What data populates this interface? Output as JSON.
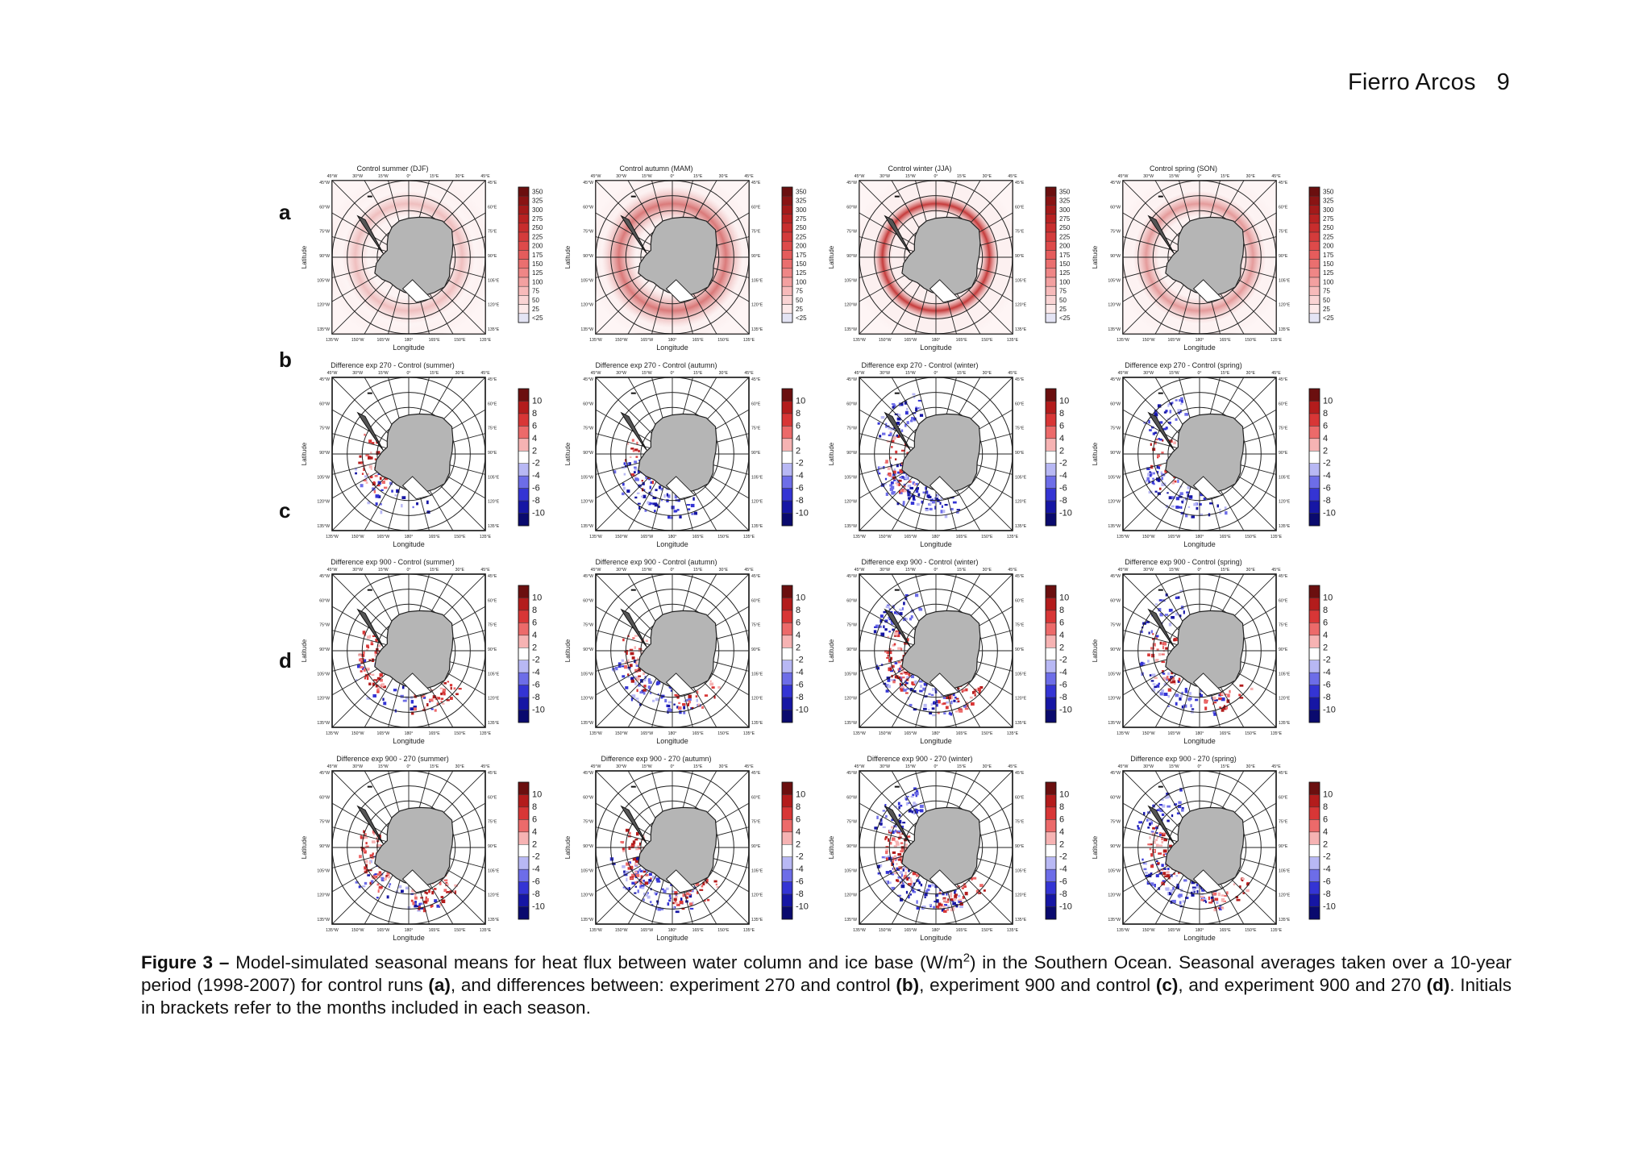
{
  "header": {
    "author": "Fierro Arcos",
    "page_number": "9"
  },
  "figure": {
    "row_labels": [
      "a",
      "b",
      "c",
      "d"
    ],
    "xlabel": "Longitude",
    "ylabel": "Latitude",
    "lon_ticks": [
      "45°W",
      "30°W",
      "15°W",
      "0°",
      "15°E",
      "30°E",
      "45°E"
    ],
    "bottom_ticks": [
      "135°W",
      "150°W",
      "165°W",
      "180°",
      "165°E",
      "150°E",
      "135°E"
    ],
    "left_ticks": [
      "45°W",
      "60°W",
      "75°W",
      "90°W",
      "105°W",
      "120°W",
      "135°W"
    ],
    "right_ticks": [
      "45°E",
      "60°E",
      "75°E",
      "90°E",
      "105°E",
      "120°E",
      "135°E"
    ],
    "colorbars": {
      "control": [
        "350",
        "325",
        "300",
        "275",
        "250",
        "225",
        "200",
        "175",
        "150",
        "125",
        "100",
        "75",
        "50",
        "25",
        "<25"
      ],
      "difference": [
        "10",
        "8",
        "6",
        "4",
        "2",
        "-2",
        "-4",
        "-6",
        "-8",
        "-10"
      ]
    },
    "colors": {
      "control": [
        "#6b0f0f",
        "#8a1414",
        "#a31a1a",
        "#b82222",
        "#c82d2d",
        "#d43b3b",
        "#de4a4a",
        "#e55c5c",
        "#ea6f6f",
        "#ef8686",
        "#f3a0a0",
        "#f7baba",
        "#fad4d4",
        "#fdeaea",
        "#e4e4f4"
      ],
      "difference": [
        "#6b0f0f",
        "#b31c1c",
        "#d83636",
        "#ec6a6a",
        "#f6b3b3",
        "#ffffff",
        "#b8b8f4",
        "#6d6de8",
        "#3434d4",
        "#1616a4",
        "#0a0a6e"
      ]
    },
    "panels": [
      {
        "row": 0,
        "col": 0,
        "title": "Control summer (DJF)",
        "scale": "control",
        "ring": {
          "intensity": 0.12,
          "width": 0.3
        }
      },
      {
        "row": 0,
        "col": 1,
        "title": "Control autumn (MAM)",
        "scale": "control",
        "ring": {
          "intensity": 0.55,
          "width": 0.4
        }
      },
      {
        "row": 0,
        "col": 2,
        "title": "Control winter (JJA)",
        "scale": "control",
        "ring": {
          "intensity": 0.9,
          "width": 0.22
        }
      },
      {
        "row": 0,
        "col": 3,
        "title": "Control spring (SON)",
        "scale": "control",
        "ring": {
          "intensity": 0.35,
          "width": 0.3
        }
      },
      {
        "row": 1,
        "col": 0,
        "title": "Difference exp 270 - Control (summer)",
        "scale": "difference",
        "diff": "b0"
      },
      {
        "row": 1,
        "col": 1,
        "title": "Difference exp 270 - Control (autumn)",
        "scale": "difference",
        "diff": "b1"
      },
      {
        "row": 1,
        "col": 2,
        "title": "Difference exp 270 - Control (winter)",
        "scale": "difference",
        "diff": "b2"
      },
      {
        "row": 1,
        "col": 3,
        "title": "Difference exp 270 - Control (spring)",
        "scale": "difference",
        "diff": "b3"
      },
      {
        "row": 2,
        "col": 0,
        "title": "Difference exp 900 - Control (summer)",
        "scale": "difference",
        "diff": "c0"
      },
      {
        "row": 2,
        "col": 1,
        "title": "Difference exp 900 - Control (autumn)",
        "scale": "difference",
        "diff": "c1"
      },
      {
        "row": 2,
        "col": 2,
        "title": "Difference exp 900 - Control (winter)",
        "scale": "difference",
        "diff": "c2"
      },
      {
        "row": 2,
        "col": 3,
        "title": "Difference exp 900 - Control (spring)",
        "scale": "difference",
        "diff": "c3"
      },
      {
        "row": 3,
        "col": 0,
        "title": "Difference exp 900 - 270 (summer)",
        "scale": "difference",
        "diff": "d0"
      },
      {
        "row": 3,
        "col": 1,
        "title": "Difference exp 900 - 270 (autumn)",
        "scale": "difference",
        "diff": "d1"
      },
      {
        "row": 3,
        "col": 2,
        "title": "Difference exp 900 - 270 (winter)",
        "scale": "difference",
        "diff": "d2"
      },
      {
        "row": 3,
        "col": 3,
        "title": "Difference exp 900 - 270 (spring)",
        "scale": "difference",
        "diff": "d3"
      }
    ]
  },
  "caption": {
    "label": "Figure 3 –",
    "text_1": " Model-simulated seasonal means for heat flux between water column and ice base (W/m",
    "sup": "2",
    "text_2": ") in the Southern Ocean. Seasonal averages taken over a 10-year period (1998-2007) for control runs ",
    "ref_a": "(a)",
    "text_3": ", and differences between: experiment 270 and control ",
    "ref_b": "(b)",
    "text_4": ", experiment 900 and control ",
    "ref_c": "(c)",
    "text_5": ", and experiment 900 and 270 ",
    "ref_d": "(d)",
    "text_6": ". Initials in brackets refer to the months included in each season."
  }
}
